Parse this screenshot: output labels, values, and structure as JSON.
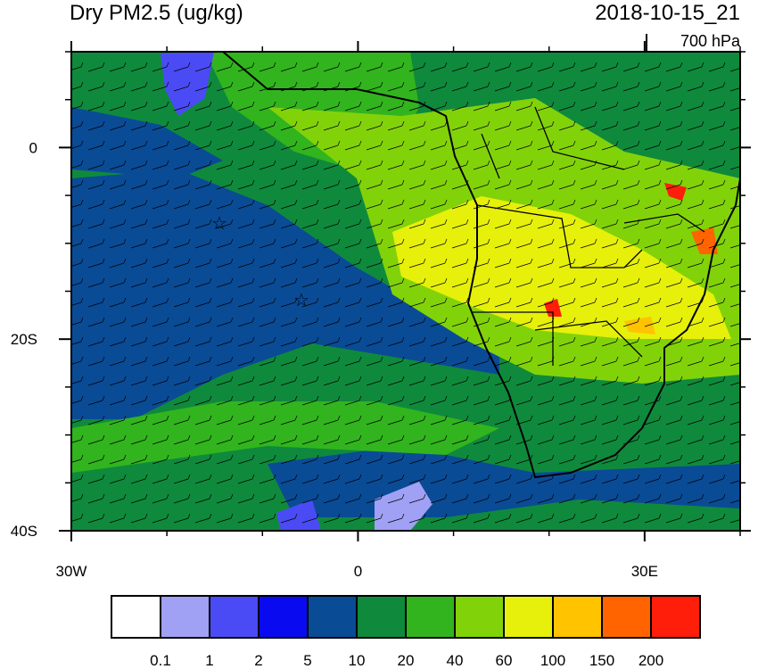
{
  "title": "Dry PM2.5 (ug/kg)",
  "time": "2018-10-15_21",
  "level": "700 hPa",
  "map": {
    "lonlim": [
      -30,
      40
    ],
    "latlim": [
      -40,
      10
    ],
    "lonticks": [
      {
        "value": -30,
        "label": "30W"
      },
      0,
      {
        "value": 30,
        "label": "30E"
      }
    ],
    "lon_minor_ticks": [
      -20,
      -10,
      10,
      20,
      40
    ],
    "latticks": [
      0,
      {
        "value": -20,
        "label": "20S"
      },
      {
        "value": -40,
        "label": "40S"
      }
    ],
    "lat_minor_ticks": [
      -35,
      -30,
      -25,
      -15,
      -10,
      -5,
      5,
      10
    ]
  },
  "colorbar": {
    "levels": [
      0.1,
      1,
      2,
      5,
      10,
      20,
      40,
      60,
      100,
      150,
      200
    ],
    "colors": [
      "#ffffff",
      "#a0a0f5",
      "#4b4bf5",
      "#0a0af0",
      "#0a4b96",
      "#0f8a3c",
      "#32b41e",
      "#82d20a",
      "#e6f00a",
      "#ffc300",
      "#ff6400",
      "#ff1e0a"
    ]
  }
}
